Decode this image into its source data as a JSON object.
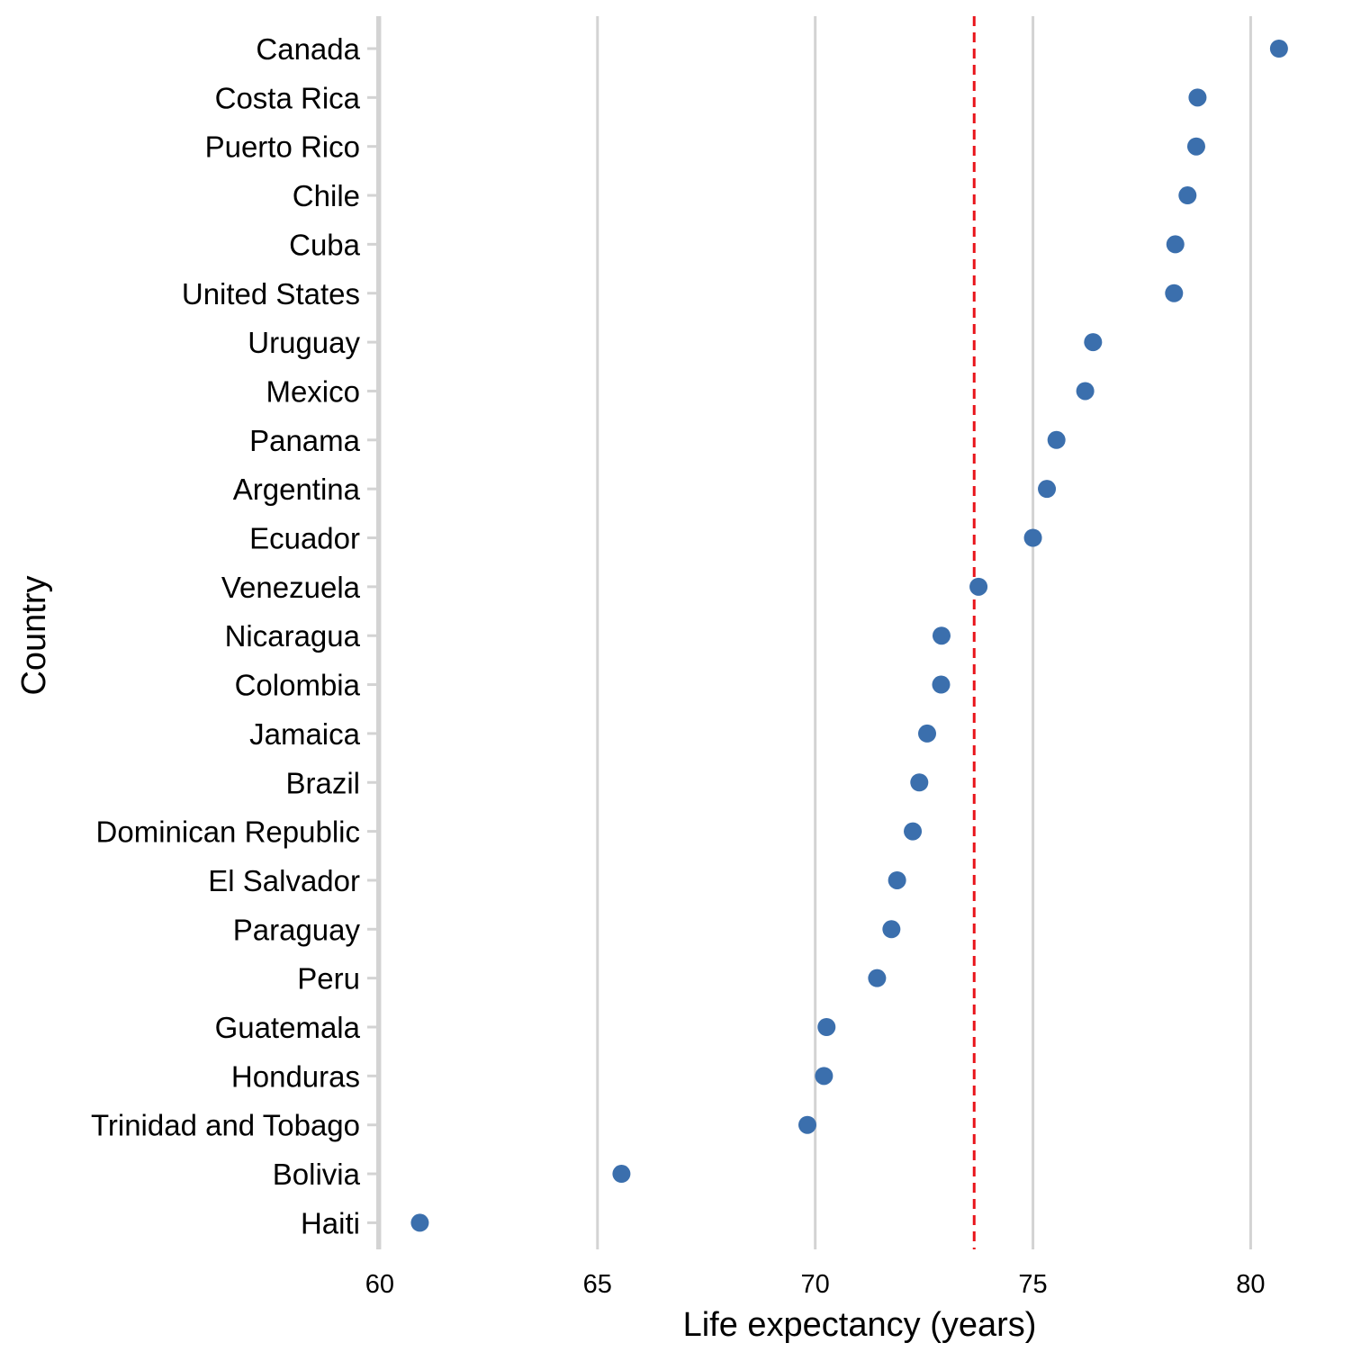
{
  "chart_data": {
    "type": "scatter",
    "title": "",
    "xlabel": "Life expectancy (years)",
    "ylabel": "Country",
    "xlim": [
      59.96,
      81.5
    ],
    "xticks": [
      60,
      65,
      70,
      75,
      80
    ],
    "xtick_labels": [
      "60",
      "65",
      "70",
      "75",
      "80"
    ],
    "grid": {
      "vertical": true,
      "horizontal": false
    },
    "reference_line": {
      "x": 73.65,
      "style": "dashed",
      "color": "#e8141b"
    },
    "point_color": "#3b6fad",
    "gridline_color": "#d3d3d3",
    "points": [
      {
        "country": "Canada",
        "x": 80.65
      },
      {
        "country": "Costa Rica",
        "x": 78.78
      },
      {
        "country": "Puerto Rico",
        "x": 78.75
      },
      {
        "country": "Chile",
        "x": 78.55
      },
      {
        "country": "Cuba",
        "x": 78.27
      },
      {
        "country": "United States",
        "x": 78.24
      },
      {
        "country": "Uruguay",
        "x": 76.38
      },
      {
        "country": "Mexico",
        "x": 76.2
      },
      {
        "country": "Panama",
        "x": 75.54
      },
      {
        "country": "Argentina",
        "x": 75.32
      },
      {
        "country": "Ecuador",
        "x": 75.0
      },
      {
        "country": "Venezuela",
        "x": 73.75
      },
      {
        "country": "Nicaragua",
        "x": 72.9
      },
      {
        "country": "Colombia",
        "x": 72.89
      },
      {
        "country": "Jamaica",
        "x": 72.57
      },
      {
        "country": "Brazil",
        "x": 72.39
      },
      {
        "country": "Dominican Republic",
        "x": 72.24
      },
      {
        "country": "El Salvador",
        "x": 71.88
      },
      {
        "country": "Paraguay",
        "x": 71.75
      },
      {
        "country": "Peru",
        "x": 71.42
      },
      {
        "country": "Guatemala",
        "x": 70.26
      },
      {
        "country": "Honduras",
        "x": 70.2
      },
      {
        "country": "Trinidad and Tobago",
        "x": 69.82
      },
      {
        "country": "Bolivia",
        "x": 65.55
      },
      {
        "country": "Haiti",
        "x": 60.92
      }
    ]
  }
}
